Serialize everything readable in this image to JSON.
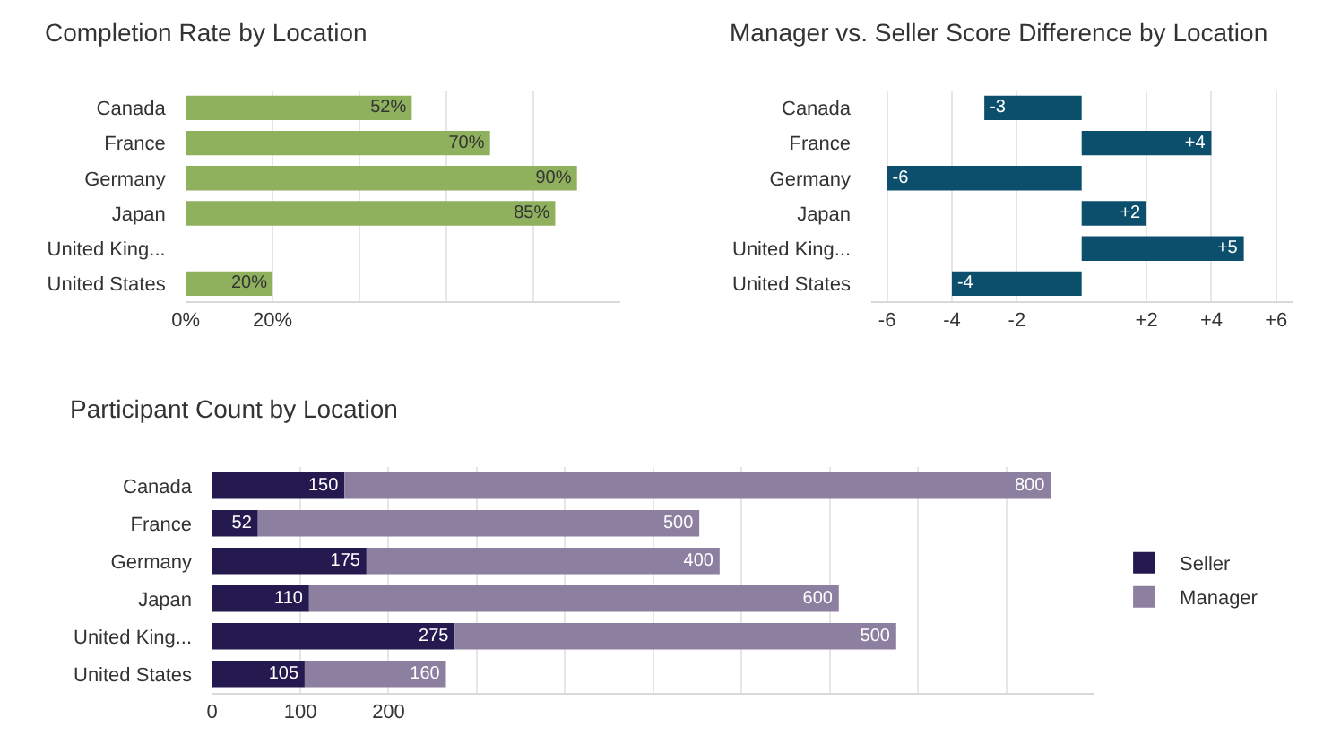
{
  "chart_data": [
    {
      "type": "bar",
      "orientation": "horizontal",
      "title": "Completion Rate by Location",
      "categories": [
        "Canada",
        "France",
        "Germany",
        "Japan",
        "United King...",
        "United States"
      ],
      "values": [
        52,
        70,
        90,
        85,
        null,
        20
      ],
      "value_labels": [
        "52%",
        "70%",
        "90%",
        "85%",
        null,
        "20%"
      ],
      "color": "#8fb15e",
      "xlim": [
        0,
        100
      ],
      "xticks": [
        {
          "value": 0,
          "label": "0%"
        },
        {
          "value": 20,
          "label": "20%"
        },
        {
          "value": 40,
          "label": null
        },
        {
          "value": 60,
          "label": null
        },
        {
          "value": 80,
          "label": null
        }
      ],
      "grid": "x"
    },
    {
      "type": "bar",
      "orientation": "horizontal",
      "title": "Participant Count by Location",
      "categories": [
        "Canada",
        "France",
        "Germany",
        "Japan",
        "United King...",
        "United States"
      ],
      "series": [
        {
          "name": "Seller",
          "color": "#241a4f",
          "values": [
            150,
            52,
            175,
            110,
            275,
            105
          ]
        },
        {
          "name": "Manager",
          "color": "#8c7fa0",
          "values": [
            800,
            500,
            400,
            600,
            500,
            160
          ]
        }
      ],
      "data_labels": true,
      "legend": "right",
      "stacked": true,
      "xlim": [
        0,
        1000
      ],
      "xticks": [
        0,
        100,
        200,
        {
          "value": 300,
          "label": null
        },
        {
          "value": 400,
          "label": null
        },
        {
          "value": 500,
          "label": null
        },
        {
          "value": 600,
          "label": null
        },
        {
          "value": 700,
          "label": null
        },
        {
          "value": 800,
          "label": null
        },
        {
          "value": 900,
          "label": null
        }
      ],
      "grid": "x"
    },
    {
      "type": "bar",
      "orientation": "horizontal",
      "title": "Manager vs. Seller Score Difference by Location",
      "categories": [
        "Canada",
        "France",
        "Germany",
        "Japan",
        "United King...",
        "United States"
      ],
      "values": [
        -3,
        4,
        -6,
        2,
        5,
        -4
      ],
      "value_labels": [
        "-3",
        "+4",
        "-6",
        "+2",
        "+5",
        "-4"
      ],
      "color": "#0b4f6c",
      "xlim": [
        -6.5,
        6.5
      ],
      "xticks": [
        -6,
        -4,
        -2,
        {
          "value": 2,
          "label": "+2"
        },
        {
          "value": 4,
          "label": "+4"
        },
        {
          "value": 6,
          "label": "+6"
        }
      ],
      "grid": "x"
    }
  ]
}
